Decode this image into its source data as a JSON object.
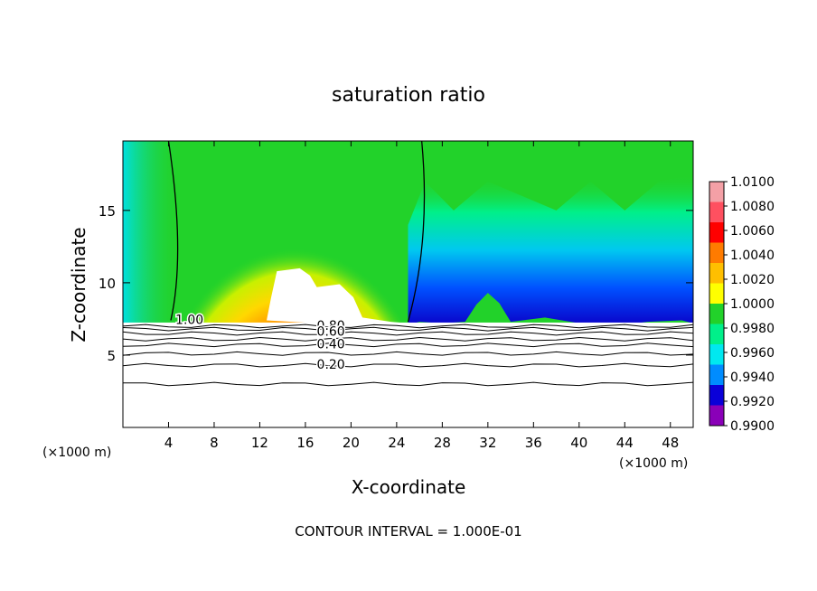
{
  "chart_data": {
    "type": "heatmap",
    "title": "saturation ratio",
    "xlabel": "X-coordinate",
    "ylabel": "Z-coordinate",
    "x_units_left": "(×1000 m)",
    "x_units_right": "(×1000 m)",
    "xlim": [
      0,
      50
    ],
    "ylim": [
      0,
      19.8
    ],
    "x_ticks": [
      4,
      8,
      12,
      16,
      20,
      24,
      28,
      32,
      36,
      40,
      44,
      48
    ],
    "x_tick_labels": [
      "4",
      "8",
      "12",
      "16",
      "20",
      "24",
      "28",
      "32",
      "36",
      "40",
      "44",
      "48"
    ],
    "y_ticks": [
      5,
      10,
      15
    ],
    "y_tick_labels": [
      "5",
      "10",
      "15"
    ],
    "footer": "CONTOUR INTERVAL = 1.000E-01",
    "colorbar": {
      "min": 0.99,
      "max": 1.01,
      "tick_values": [
        1.01,
        1.008,
        1.006,
        1.004,
        1.002,
        1.0,
        0.998,
        0.996,
        0.994,
        0.992,
        0.99
      ],
      "tick_labels": [
        "1.0100",
        "1.0080",
        "1.0060",
        "1.0040",
        "1.0020",
        "1.0000",
        "0.9980",
        "0.9960",
        "0.9940",
        "0.9920",
        "0.9900"
      ],
      "colors": [
        "#f4a0a6",
        "#ff5060",
        "#ff0000",
        "#ff7b00",
        "#ffbf00",
        "#ffff00",
        "#22d22a",
        "#00f08a",
        "#00e8f0",
        "#008cff",
        "#0a00d8",
        "#8a00b8"
      ]
    },
    "contour_labels": [
      {
        "text": "1.00",
        "x": 4.6,
        "y": 7.4
      },
      {
        "text": "0.80",
        "x": 17.0,
        "y": 7.0
      },
      {
        "text": "0.60",
        "x": 17.0,
        "y": 6.6
      },
      {
        "text": "0.40",
        "x": 17.0,
        "y": 5.7
      },
      {
        "text": "0.20",
        "x": 17.0,
        "y": 4.3
      }
    ]
  }
}
